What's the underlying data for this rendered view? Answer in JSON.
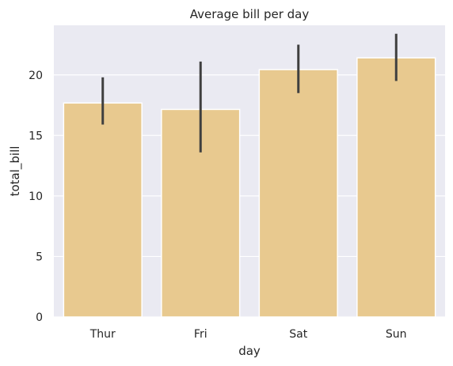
{
  "chart_data": {
    "type": "bar",
    "title": "Average bill per day",
    "xlabel": "day",
    "ylabel": "total_bill",
    "categories": [
      "Thur",
      "Fri",
      "Sat",
      "Sun"
    ],
    "values": [
      17.68,
      17.15,
      20.44,
      21.41
    ],
    "error_low": [
      15.9,
      13.6,
      18.5,
      19.5
    ],
    "error_high": [
      19.8,
      21.1,
      22.5,
      23.4
    ],
    "ylim": [
      0,
      24.1
    ],
    "yticks": [
      0,
      5,
      10,
      15,
      20
    ],
    "grid": true,
    "colors": {
      "bar": "#E8C98F",
      "errorbar": "#3f3f3f",
      "plot_background": "#EAEAF2",
      "grid": "#ffffff"
    }
  }
}
